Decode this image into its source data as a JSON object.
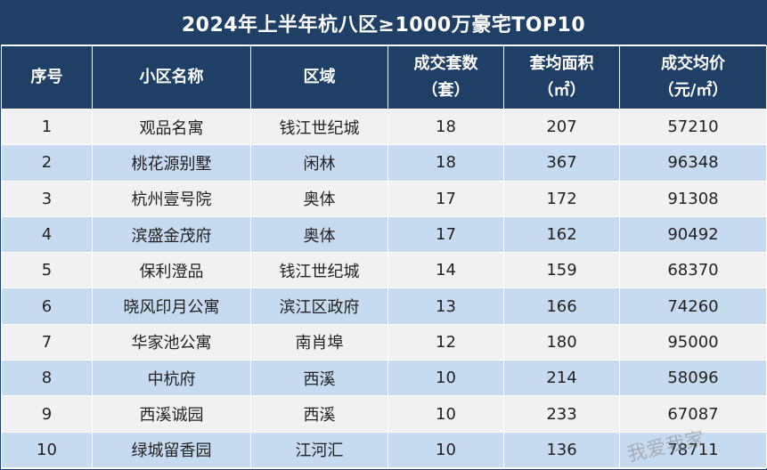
{
  "title": "2024年上半年杭八区≥1000万豪宅TOP10",
  "headers": {
    "rank": "序号",
    "name": "小区名称",
    "district": "区域",
    "deals_line1": "成交套数",
    "deals_line2": "（套）",
    "area_line1": "套均面积",
    "area_line2": "（㎡）",
    "price_line1": "成交均价",
    "price_line2": "（元/㎡）"
  },
  "rows": [
    {
      "rank": "1",
      "name": "观品名寓",
      "district": "钱江世纪城",
      "deals": "18",
      "area": "207",
      "price": "57210"
    },
    {
      "rank": "2",
      "name": "桃花源别墅",
      "district": "闲林",
      "deals": "18",
      "area": "367",
      "price": "96348"
    },
    {
      "rank": "3",
      "name": "杭州壹号院",
      "district": "奥体",
      "deals": "17",
      "area": "172",
      "price": "91308"
    },
    {
      "rank": "4",
      "name": "滨盛金茂府",
      "district": "奥体",
      "deals": "17",
      "area": "162",
      "price": "90492"
    },
    {
      "rank": "5",
      "name": "保利澄品",
      "district": "钱江世纪城",
      "deals": "14",
      "area": "159",
      "price": "68370"
    },
    {
      "rank": "6",
      "name": "晓风印月公寓",
      "district": "滨江区政府",
      "deals": "13",
      "area": "166",
      "price": "74260"
    },
    {
      "rank": "7",
      "name": "华家池公寓",
      "district": "南肖埠",
      "deals": "12",
      "area": "180",
      "price": "95000"
    },
    {
      "rank": "8",
      "name": "中杭府",
      "district": "西溪",
      "deals": "10",
      "area": "214",
      "price": "58096"
    },
    {
      "rank": "9",
      "name": "西溪诚园",
      "district": "西溪",
      "deals": "10",
      "area": "233",
      "price": "67087"
    },
    {
      "rank": "10",
      "name": "绿城留香园",
      "district": "江河汇",
      "deals": "10",
      "area": "136",
      "price": "78711"
    }
  ],
  "watermark": "我爱我家",
  "colors": {
    "header_bg": "#1f3f66",
    "row_light": "#f1f1f1",
    "row_blue": "#c6daf0"
  }
}
